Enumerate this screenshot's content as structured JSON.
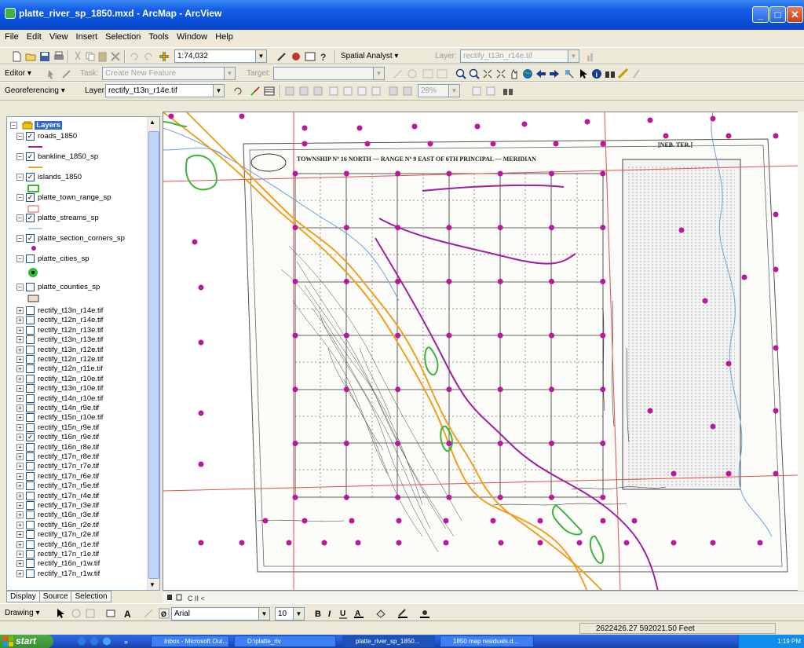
{
  "window": {
    "title": "platte_river_sp_1850.mxd - ArcMap - ArcView"
  },
  "menu": [
    "File",
    "Edit",
    "View",
    "Insert",
    "Selection",
    "Tools",
    "Window",
    "Help"
  ],
  "standard_toolbar": {
    "scale": "1:74,032",
    "spatial_analyst": "Spatial Analyst ▾",
    "layer_label": "Layer:",
    "layer_value": "rectify_t13n_r14e.tif"
  },
  "editor_toolbar": {
    "editor": "Editor ▾",
    "task_label": "Task:",
    "task_value": "Create New Feature",
    "target_label": "Target:"
  },
  "georef_toolbar": {
    "georef": "Georeferencing ▾",
    "layer_label": "Layer:",
    "layer_value": "rectify_t13n_r14e.tif",
    "zoom": "28%"
  },
  "toc": {
    "root": "Layers",
    "layers": [
      {
        "name": "roads_1850",
        "checked": true
      },
      {
        "name": "bankline_1850_sp",
        "checked": true
      },
      {
        "name": "islands_1850",
        "checked": true
      },
      {
        "name": "platte_town_range_sp",
        "checked": true
      },
      {
        "name": "platte_streams_sp",
        "checked": true
      },
      {
        "name": "platte_section_corners_sp",
        "checked": true
      },
      {
        "name": "platte_cities_sp",
        "checked": false
      },
      {
        "name": "platte_counties_sp",
        "checked": false
      }
    ],
    "rasters": [
      {
        "name": "rectify_t13n_r14e.tif",
        "checked": false
      },
      {
        "name": "rectify_t12n_r14e.tif",
        "checked": false
      },
      {
        "name": "rectify_t12n_r13e.tif",
        "checked": false
      },
      {
        "name": "rectify_t13n_r13e.tif",
        "checked": false
      },
      {
        "name": "rectify_t13n_r12e.tif",
        "checked": false
      },
      {
        "name": "rectify_t12n_r12e.tif",
        "checked": false
      },
      {
        "name": "rectify_t12n_r11e.tif",
        "checked": false
      },
      {
        "name": "rectify_t12n_r10e.tif",
        "checked": false
      },
      {
        "name": "rectify_t13n_r10e.tif",
        "checked": false
      },
      {
        "name": "rectify_t14n_r10e.tif",
        "checked": false
      },
      {
        "name": "rectify_t14n_r9e.tif",
        "checked": false
      },
      {
        "name": "rectify_t15n_r10e.tif",
        "checked": false
      },
      {
        "name": "rectify_t15n_r9e.tif",
        "checked": false
      },
      {
        "name": "rectify_t16n_r9e.tif",
        "checked": true
      },
      {
        "name": "rectify_t16n_r8e.tif",
        "checked": false
      },
      {
        "name": "rectify_t17n_r8e.tif",
        "checked": false
      },
      {
        "name": "rectify_t17n_r7e.tif",
        "checked": false
      },
      {
        "name": "rectify_t17n_r6e.tif",
        "checked": false
      },
      {
        "name": "rectify_t17n_r5e.tif",
        "checked": false
      },
      {
        "name": "rectify_t17n_r4e.tif",
        "checked": false
      },
      {
        "name": "rectify_t17n_r3e.tif",
        "checked": false
      },
      {
        "name": "rectify_t16n_r3e.tif",
        "checked": false
      },
      {
        "name": "rectify_t16n_r2e.tif",
        "checked": false
      },
      {
        "name": "rectify_t17n_r2e.tif",
        "checked": false
      },
      {
        "name": "rectify_t16n_r1e.tif",
        "checked": false
      },
      {
        "name": "rectify_t17n_r1e.tif",
        "checked": false
      },
      {
        "name": "rectify_t16n_r1w.tif",
        "checked": false
      },
      {
        "name": "rectify_t17n_r1w.tif",
        "checked": false
      }
    ],
    "tabs": [
      "Display",
      "Source",
      "Selection"
    ]
  },
  "map": {
    "header_text": "TOWNSHIP Nº 16 NORTH — RANGE Nº 9 EAST OF 6TH PRINCIPAL — MERIDIAN",
    "territory_label": "[NEB. TER.]",
    "colors": {
      "roads": "#a020a0",
      "bankline": "#f0a020",
      "islands": "#3cb43c",
      "streams": "#6ea0dc",
      "town_range": "#e05050",
      "corners": "#b8189a"
    }
  },
  "drawing_toolbar": {
    "drawing": "Drawing ▾",
    "font": "Arial",
    "size": "10"
  },
  "status": {
    "coords": "2622426.27  592021.50 Feet"
  },
  "taskbar": {
    "start": "start",
    "tasks": [
      "Inbox - Microsoft Out...",
      "D:\\platte_riv",
      "platte_river_sp_1850...",
      "1850 map residuals.d..."
    ],
    "clock": "1:19 PM"
  }
}
